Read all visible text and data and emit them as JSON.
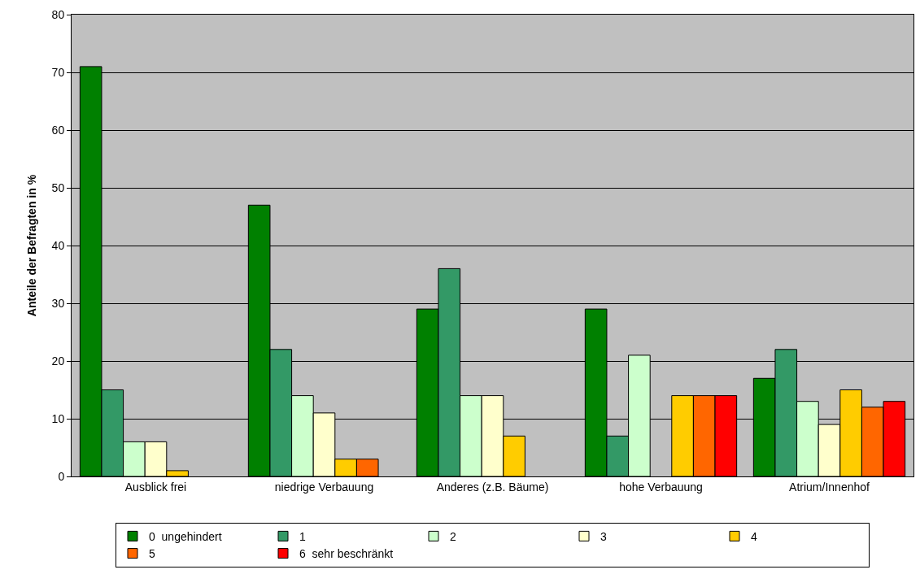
{
  "chart_data": {
    "type": "bar",
    "ylabel": "Anteile der Befragten in %",
    "categories": [
      "Ausblick frei",
      "niedrige Verbauung",
      "Anderes (z.B. Bäume)",
      "hohe Verbauung",
      "Atrium/Innenhof"
    ],
    "series": [
      {
        "name": "0  ungehindert",
        "color": "#008000",
        "values": [
          71,
          47,
          29,
          29,
          17
        ]
      },
      {
        "name": "1",
        "color": "#339966",
        "values": [
          15,
          22,
          36,
          7,
          22
        ]
      },
      {
        "name": "2",
        "color": "#ccffcc",
        "values": [
          6,
          14,
          14,
          21,
          13
        ]
      },
      {
        "name": "3",
        "color": "#ffffcc",
        "values": [
          6,
          11,
          14,
          null,
          9
        ]
      },
      {
        "name": "4",
        "color": "#ffcc00",
        "values": [
          1,
          3,
          7,
          14,
          15
        ]
      },
      {
        "name": "5",
        "color": "#ff6600",
        "values": [
          null,
          3,
          null,
          14,
          12
        ]
      },
      {
        "name": "6  sehr beschränkt",
        "color": "#ff0000",
        "values": [
          null,
          null,
          null,
          14,
          13
        ]
      }
    ],
    "ylim": [
      0,
      80
    ],
    "yticks": [
      0,
      10,
      20,
      30,
      40,
      50,
      60,
      70,
      80
    ],
    "grid": "y",
    "legend": "bottom"
  }
}
